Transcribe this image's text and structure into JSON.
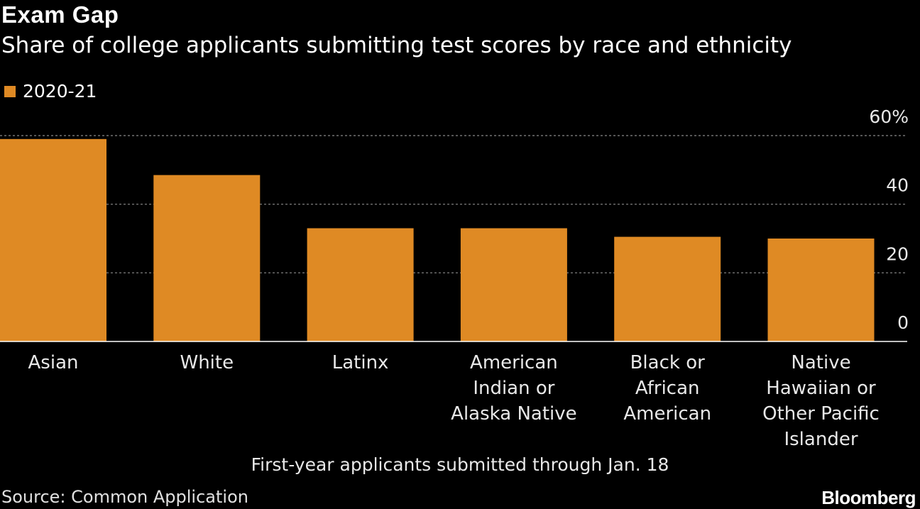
{
  "header": {
    "title": "Exam Gap",
    "subtitle": "Share of college applicants submitting test scores by race and ethnicity"
  },
  "legend": {
    "label": "2020-21",
    "color": "#df8a24"
  },
  "chart_data": {
    "type": "bar",
    "title": "Exam Gap",
    "subtitle": "Share of college applicants submitting test scores by race and ethnicity",
    "categories": [
      [
        "Asian"
      ],
      [
        "White"
      ],
      [
        "Latinx"
      ],
      [
        "American",
        "Indian or",
        "Alaska Native"
      ],
      [
        "Black or",
        "African",
        "American"
      ],
      [
        "Native",
        "Hawaiian or",
        "Other Pacific",
        "Islander"
      ]
    ],
    "series": [
      {
        "name": "2020-21",
        "values": [
          59,
          48.5,
          33,
          33,
          30.5,
          30
        ]
      }
    ],
    "ylim": [
      0,
      60
    ],
    "y_ticks": [
      "0",
      "20",
      "40",
      "60%"
    ],
    "grid": true,
    "legend_position": "top-left",
    "bar_color": "#df8a24"
  },
  "footnote": "First-year applicants submitted through Jan. 18",
  "source": "Source: Common Application",
  "brand": "Bloomberg"
}
